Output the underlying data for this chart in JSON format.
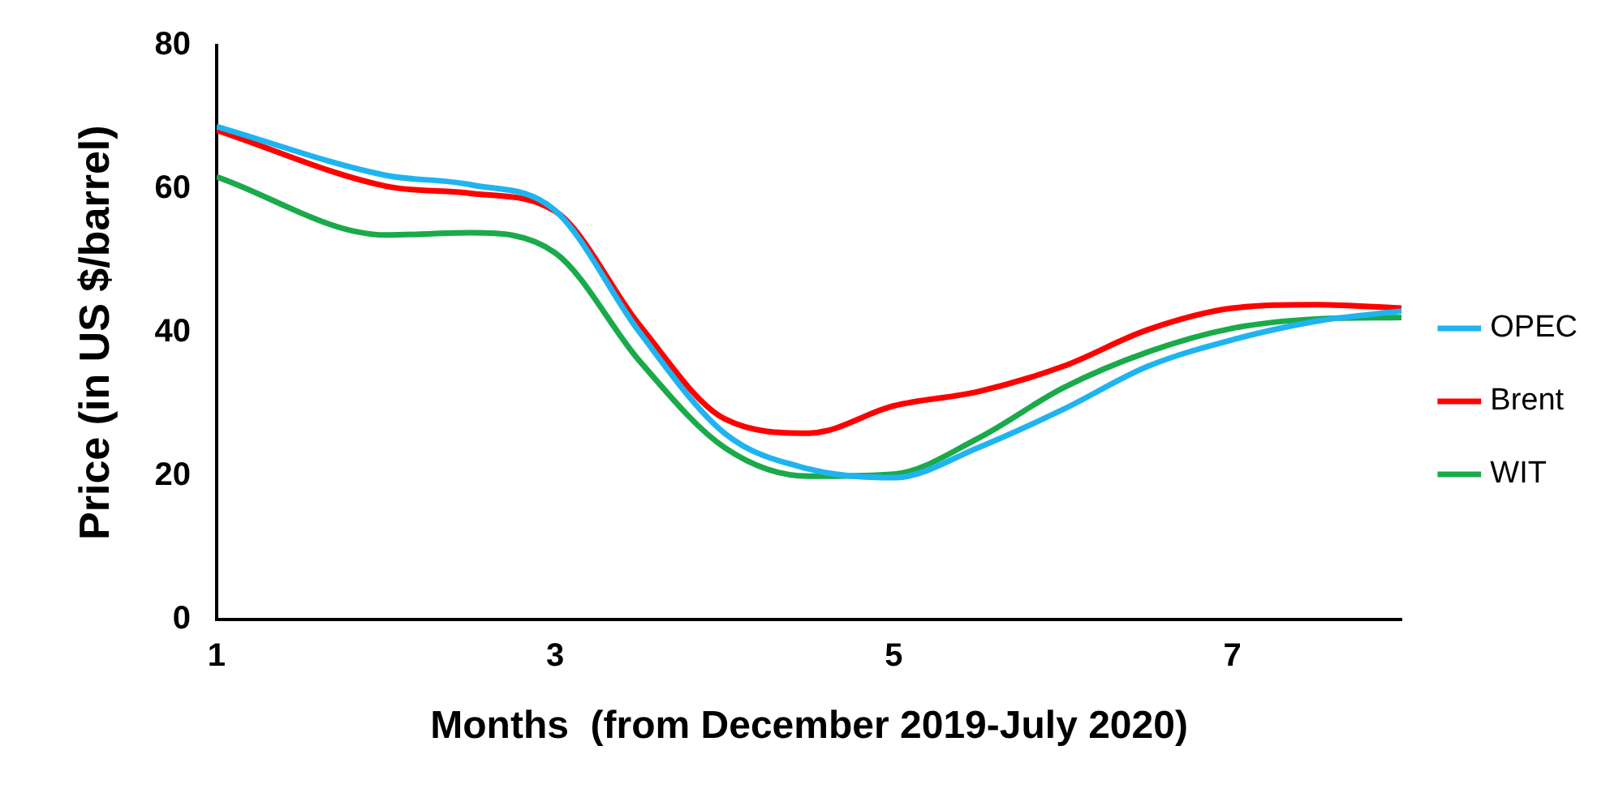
{
  "chart_data": {
    "type": "line",
    "xlabel": "Months  (from December 2019-July 2020)",
    "ylabel": "Price (in US $/barrel)",
    "xlim": [
      1,
      8
    ],
    "xticks": [
      1,
      3,
      5,
      7
    ],
    "ylim": [
      0,
      80
    ],
    "yticks": [
      0,
      20,
      40,
      60,
      80
    ],
    "grid": false,
    "legend": "right",
    "marker": "none",
    "line_style": "solid",
    "x": [
      1,
      2,
      2.5,
      3,
      3.5,
      4,
      4.5,
      5,
      5.5,
      6,
      6.5,
      7,
      7.5,
      8
    ],
    "series": [
      {
        "name": "OPEC",
        "color": "#1fb4f0",
        "values": [
          68.7,
          61.9,
          60.6,
          57,
          40,
          26,
          21,
          19.8,
          24,
          29.3,
          35.3,
          39,
          41.6,
          43
        ]
      },
      {
        "name": "Brent",
        "color": "#ff0000",
        "values": [
          68.2,
          60.4,
          59.4,
          56.9,
          41,
          28,
          26,
          29.8,
          31.8,
          35.3,
          40.4,
          43.4,
          43.9,
          43.4
        ]
      },
      {
        "name": "WIT",
        "color": "#1aaa4a",
        "values": [
          61.7,
          53.6,
          53.9,
          51.1,
          36,
          24,
          20,
          20.3,
          25.3,
          32.3,
          37.3,
          40.6,
          41.9,
          42.1
        ]
      }
    ]
  }
}
